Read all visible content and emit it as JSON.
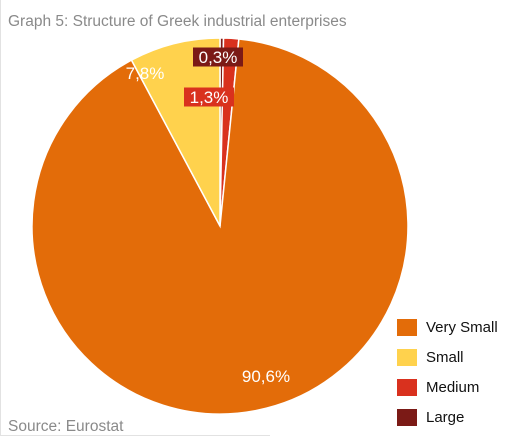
{
  "chart_data": {
    "type": "pie",
    "title": "Graph 5: Structure of Greek industrial enterprises",
    "source": "Source: Eurostat",
    "categories": [
      "Very Small",
      "Small",
      "Medium",
      "Large"
    ],
    "values": [
      90.6,
      7.8,
      1.3,
      0.3
    ],
    "value_labels": [
      "90,6%",
      "7,8%",
      "1,3%",
      "0,3%"
    ],
    "colors": [
      "#E36C09",
      "#FFD24D",
      "#D9311E",
      "#7B1A16"
    ],
    "legend_position": "bottom-right"
  }
}
